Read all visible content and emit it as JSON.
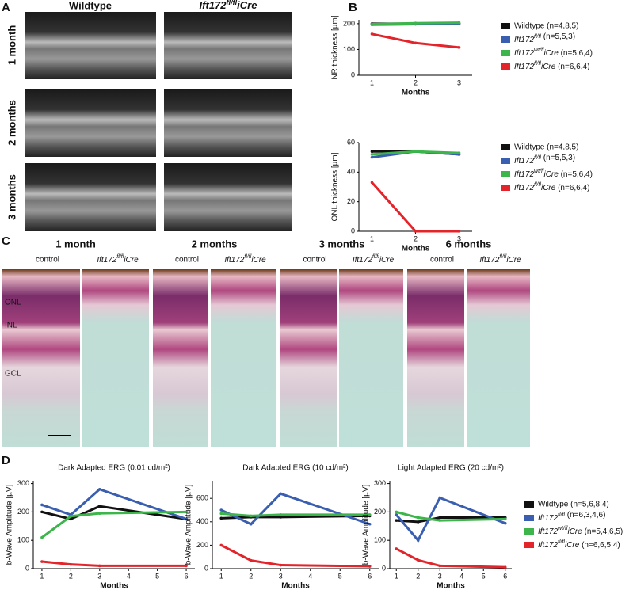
{
  "panel_labels": [
    "A",
    "B",
    "C",
    "D"
  ],
  "oct": {
    "columns": [
      "Wildtype",
      "Ift172fl/fliCre"
    ],
    "rows": [
      "1 month",
      "2 months",
      "3 months"
    ]
  },
  "histology": {
    "timepoints": [
      "1 month",
      "2 months",
      "3 months",
      "6 months"
    ],
    "groups": [
      "control",
      "Ift172fl/fliCre"
    ],
    "layers": [
      "ONL",
      "INL",
      "GCL"
    ]
  },
  "chart_data": [
    {
      "type": "line",
      "ylabel": "NR thickness [µm]",
      "xlabel": "Months",
      "x": [
        1,
        2,
        3
      ],
      "xlim": [
        0.7,
        3.3
      ],
      "xticks": [
        1,
        2,
        3
      ],
      "ylim": [
        0,
        215
      ],
      "yticks": [
        0,
        100,
        200
      ],
      "legend": "right",
      "series": [
        {
          "name": "Wildtype (n=4,8,5)",
          "color": "#111111",
          "values": [
            200,
            200,
            200
          ]
        },
        {
          "name": "Ift172fl/fl (n=5,5,3)",
          "color": "#3a5fb0",
          "values": [
            196,
            198,
            200
          ]
        },
        {
          "name": "Ift172wt/fliCre (n=5,6,4)",
          "color": "#3cb54a",
          "values": [
            198,
            202,
            204
          ]
        },
        {
          "name": "Ift172fl/fliCre (n=6,6,4)",
          "color": "#e3242b",
          "values": [
            160,
            125,
            108
          ]
        }
      ]
    },
    {
      "type": "line",
      "ylabel": "ONL thickness [µm]",
      "xlabel": "Months",
      "x": [
        1,
        2,
        3
      ],
      "xlim": [
        0.7,
        3.3
      ],
      "xticks": [
        1,
        2,
        3
      ],
      "ylim": [
        0,
        60
      ],
      "yticks": [
        0,
        20,
        40,
        60
      ],
      "legend": "right",
      "series": [
        {
          "name": "Wildtype (n=4,8,5)",
          "color": "#111111",
          "values": [
            54,
            54,
            52
          ]
        },
        {
          "name": "Ift172fl/fl (n=5,5,3)",
          "color": "#3a5fb0",
          "values": [
            50,
            54,
            52
          ]
        },
        {
          "name": "Ift172wt/fliCre (n=5,6,4)",
          "color": "#3cb54a",
          "values": [
            52,
            54,
            53
          ]
        },
        {
          "name": "Ift172fl/fliCre (n=6,6,4)",
          "color": "#e3242b",
          "values": [
            33,
            0,
            0
          ]
        }
      ]
    },
    {
      "type": "line",
      "title": "Dark Adapted ERG (0.01 cd/m²)",
      "ylabel": "b-Wave Amplitude [µV]",
      "xlabel": "Months",
      "x": [
        1,
        2,
        3,
        6
      ],
      "xlim": [
        0.7,
        6.3
      ],
      "xticks": [
        1,
        2,
        3,
        4,
        5,
        6
      ],
      "ylim": [
        0,
        310
      ],
      "yticks": [
        0,
        100,
        200,
        300
      ],
      "series": [
        {
          "color": "#111111",
          "values": [
            200,
            175,
            220,
            175
          ]
        },
        {
          "color": "#3a5fb0",
          "values": [
            225,
            190,
            280,
            175
          ]
        },
        {
          "color": "#3cb54a",
          "values": [
            110,
            185,
            195,
            200
          ]
        },
        {
          "color": "#e3242b",
          "values": [
            25,
            15,
            10,
            10
          ]
        }
      ]
    },
    {
      "type": "line",
      "title": "Dark Adapted ERG (10 cd/m²)",
      "ylabel": "b-Wave Amplitude [µV]",
      "xlabel": "Months",
      "x": [
        1,
        2,
        3,
        6
      ],
      "xlim": [
        0.7,
        6.3
      ],
      "xticks": [
        1,
        2,
        3,
        4,
        5,
        6
      ],
      "ylim": [
        0,
        750
      ],
      "yticks": [
        0,
        200,
        400,
        600
      ],
      "series": [
        {
          "color": "#111111",
          "values": [
            430,
            440,
            440,
            450
          ]
        },
        {
          "color": "#3a5fb0",
          "values": [
            500,
            380,
            640,
            380
          ]
        },
        {
          "color": "#3cb54a",
          "values": [
            470,
            450,
            460,
            460
          ]
        },
        {
          "color": "#e3242b",
          "values": [
            200,
            70,
            30,
            20
          ]
        }
      ]
    },
    {
      "type": "line",
      "title": "Light Adapted ERG (20 cd/m²)",
      "ylabel": "b-Wave Amplitude [µV]",
      "xlabel": "Months",
      "x": [
        1,
        2,
        3,
        6
      ],
      "xlim": [
        0.7,
        6.3
      ],
      "xticks": [
        1,
        2,
        3,
        4,
        5,
        6
      ],
      "ylim": [
        0,
        310
      ],
      "yticks": [
        0,
        100,
        200,
        300
      ],
      "legend": "right",
      "series": [
        {
          "name": "Wildtype (n=5,6,8,4)",
          "color": "#111111",
          "values": [
            170,
            165,
            180,
            180
          ]
        },
        {
          "name": "Ift172fl/fl (n=6,3,4,6)",
          "color": "#3a5fb0",
          "values": [
            190,
            100,
            250,
            160
          ]
        },
        {
          "name": "Ift172wt/fliCre (n=5,4,6,5)",
          "color": "#3cb54a",
          "values": [
            200,
            180,
            170,
            175
          ]
        },
        {
          "name": "Ift172fl/fliCre (n=6,6,5,4)",
          "color": "#e3242b",
          "values": [
            70,
            30,
            10,
            5
          ]
        }
      ]
    }
  ]
}
